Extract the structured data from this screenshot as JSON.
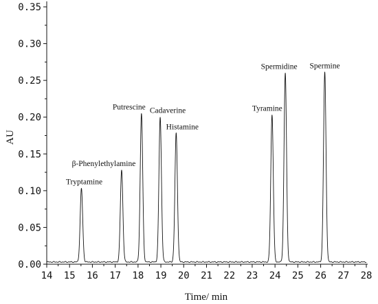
{
  "chart_data": {
    "type": "line",
    "xlabel": "Time/ min",
    "ylabel": "AU",
    "xlim": [
      14,
      28
    ],
    "ylim": [
      0,
      0.35
    ],
    "x_ticks": [
      "14",
      "15",
      "16",
      "17",
      "18",
      "19",
      "20",
      "21",
      "22",
      "23",
      "24",
      "25",
      "26",
      "27",
      "28"
    ],
    "y_ticks": [
      "0.00",
      "0.05",
      "0.10",
      "0.15",
      "0.20",
      "0.25",
      "0.30",
      "0.35"
    ],
    "grid": false,
    "baseline": 0.003,
    "peaks": [
      {
        "name": "Tryptamine",
        "x": 15.52,
        "y": 0.103
      },
      {
        "name": "β-Phenylethylamine",
        "x": 17.28,
        "y": 0.128
      },
      {
        "name": "Putrescine",
        "x": 18.15,
        "y": 0.205
      },
      {
        "name": "Cadaverine",
        "x": 18.97,
        "y": 0.2
      },
      {
        "name": "Histamine",
        "x": 19.67,
        "y": 0.178
      },
      {
        "name": "Tyramine",
        "x": 23.87,
        "y": 0.203
      },
      {
        "name": "Spermidine",
        "x": 24.45,
        "y": 0.26
      },
      {
        "name": "Spermine",
        "x": 26.18,
        "y": 0.261
      }
    ]
  }
}
